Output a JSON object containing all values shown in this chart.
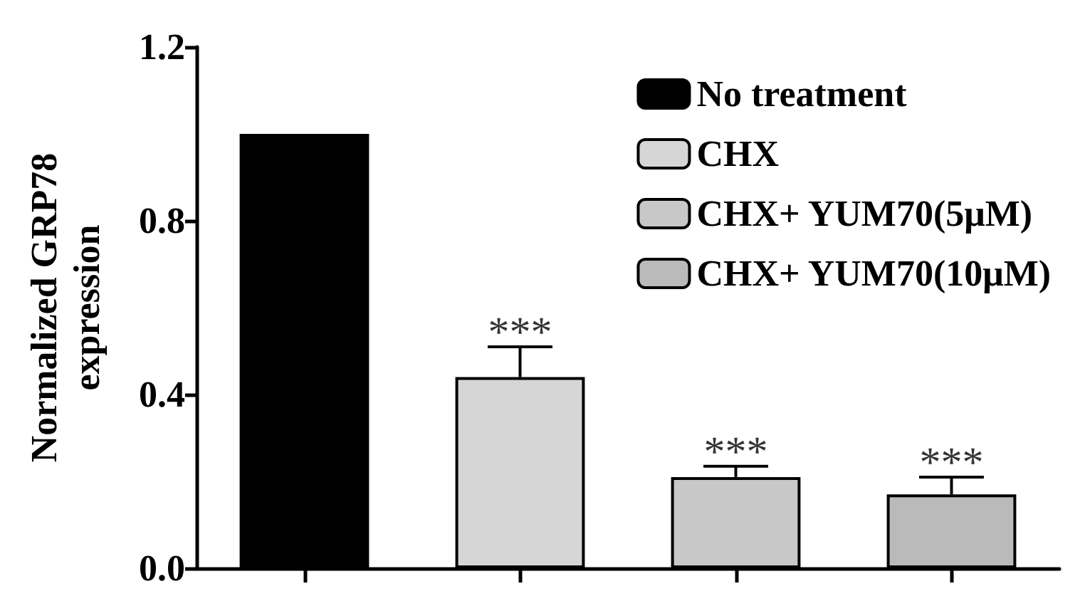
{
  "chart_data": {
    "type": "bar",
    "ylabel": "Normalized GRP78 expression",
    "categories": [
      null,
      null,
      null,
      null
    ],
    "series": [
      {
        "name": "No treatment",
        "color": "#000000",
        "values": [
          1.0,
          null,
          null,
          null
        ],
        "errors": [
          null,
          null,
          null,
          null
        ],
        "value_labels": [
          null,
          null,
          null,
          null
        ]
      },
      {
        "name": "CHX",
        "color": "#d6d6d6",
        "values": [
          null,
          0.44,
          null,
          null
        ],
        "errors": [
          null,
          0.07,
          null,
          null
        ],
        "value_labels": [
          null,
          "***",
          null,
          null
        ]
      },
      {
        "name": "CHX+ YUM70(5μM)",
        "color": "#c8c8c8",
        "values": [
          null,
          null,
          0.21,
          null
        ],
        "errors": [
          null,
          null,
          0.025,
          null
        ],
        "value_labels": [
          null,
          null,
          "***",
          null
        ]
      },
      {
        "name": "CHX+ YUM70(10μM)",
        "color": "#bababa",
        "values": [
          null,
          null,
          null,
          0.17
        ],
        "errors": [
          null,
          null,
          null,
          0.04
        ],
        "value_labels": [
          null,
          null,
          null,
          "***"
        ]
      }
    ],
    "ylim": [
      0,
      1.2
    ],
    "yticks": [
      {
        "value": 0,
        "label": "0.0"
      },
      0.4,
      0.8,
      1.2
    ],
    "grid": false,
    "legend": "top right"
  }
}
